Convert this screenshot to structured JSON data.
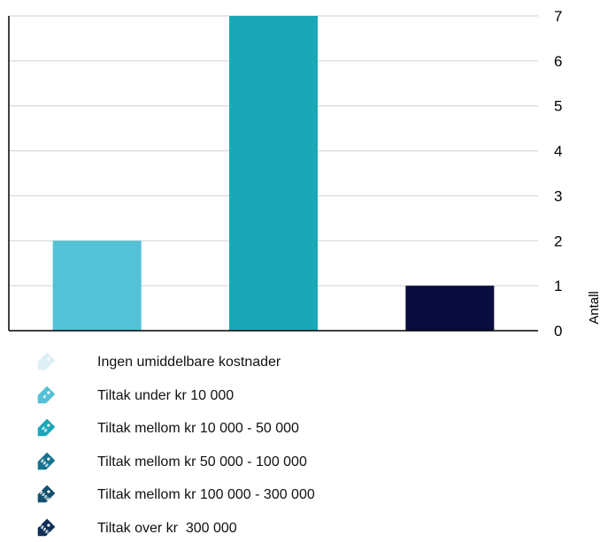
{
  "chart_data": {
    "type": "bar",
    "categories": [
      "Tiltak under kr 10 000",
      "Tiltak mellom kr 10 000 - 50 000",
      "Tiltak over kr  300 000"
    ],
    "values": [
      2,
      7,
      1
    ],
    "colors": [
      "#53c2d6",
      "#1aa7b8",
      "#0b0d3e"
    ],
    "ylabel": "Antall",
    "ylim": [
      0,
      7
    ],
    "yticks": [
      0,
      1,
      2,
      3,
      4,
      5,
      6,
      7
    ],
    "y_axis_side": "right",
    "grid": true,
    "legend_placement": "bottom"
  },
  "legend": [
    {
      "label": "Ingen umiddelbare kostnader",
      "icon": "tag-icon",
      "color": "#dceff4",
      "mark": ""
    },
    {
      "label": "Tiltak under kr 10 000",
      "icon": "tag-icon",
      "color": "#53c2d6",
      "mark": "$"
    },
    {
      "label": "Tiltak mellom kr 10 000 - 50 000",
      "icon": "tag-icon",
      "color": "#1aa7b8",
      "mark": "$$"
    },
    {
      "label": "Tiltak mellom kr 50 000 - 100 000",
      "icon": "tag-icon",
      "color": "#17738f",
      "mark": "$$$"
    },
    {
      "label": "Tiltak mellom kr 100 000 - 300 000",
      "icon": "tag-icon",
      "color": "#13506e",
      "mark": "$$$$"
    },
    {
      "label": "Tiltak over kr  300 000",
      "icon": "tag-icon",
      "color": "#0f2f57",
      "mark": "$$$$$"
    }
  ]
}
